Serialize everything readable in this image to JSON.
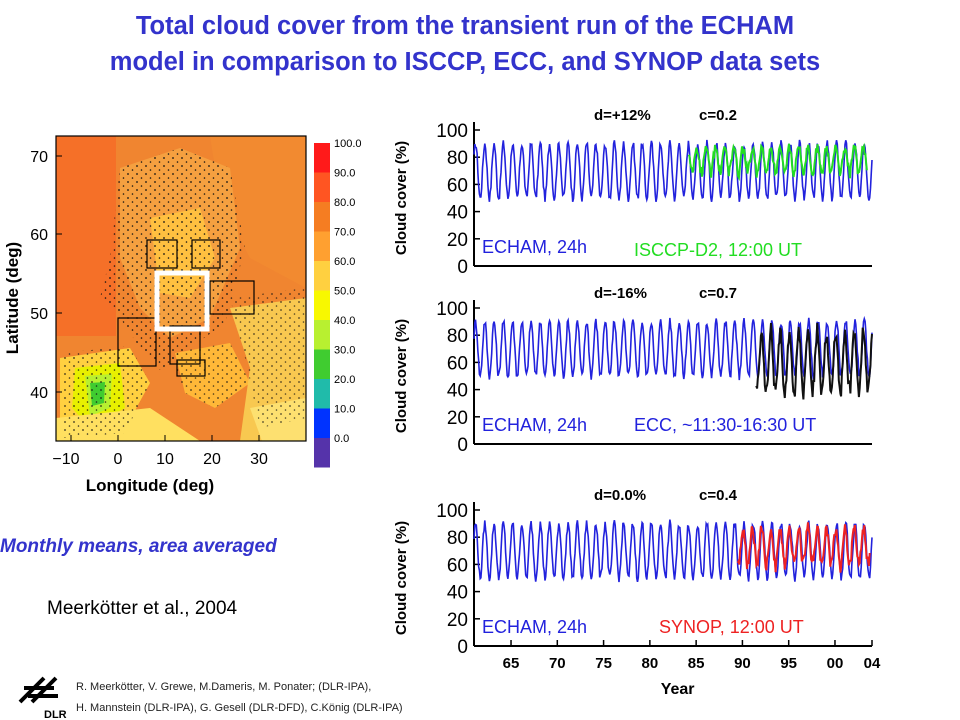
{
  "title": {
    "line1": "Total cloud cover from the transient run of the ECHAM",
    "line2": "model in comparison to ISCCP, ECC, and SYNOP data sets"
  },
  "map": {
    "colorbar": [
      "100.0",
      "90.0",
      "80.0",
      "70.0",
      "60.0",
      "50.0",
      "40.0",
      "30.0",
      "20.0",
      "10.0",
      "0.0"
    ],
    "colorbar_colors": [
      "#ff1a1a",
      "#ff5522",
      "#f57d22",
      "#ffa030",
      "#ffd040",
      "#f8f800",
      "#b8f030",
      "#40cc30",
      "#20bbaa",
      "#0033ff",
      "#5533aa"
    ],
    "lat_ticks": [
      "70",
      "60",
      "50",
      "40"
    ],
    "lon_ticks": [
      "−10",
      "0",
      "10",
      "20",
      "30"
    ],
    "ylabel": "Latitude (deg)",
    "xlabel": "Longitude (deg)"
  },
  "subtitle": "Monthly means, area averaged",
  "citation": "Meerkötter et al., 2004",
  "credits": {
    "line1": "R. Meerkötter, V. Grewe, M.Dameris, M. Ponater; (DLR-IPA),",
    "line2": "H. Mannstein (DLR-IPA), G. Gesell (DLR-DFD), C.König (DLR-IPA)"
  },
  "logo_text": "DLR",
  "panels": [
    {
      "d": "d=+12%",
      "c": "c=0.2",
      "model_label": "ECHAM, 24h",
      "obs_label": "ISCCP-D2, 12:00 UT",
      "obs_color": "#22dd22",
      "ylabel": "Cloud cover (%)"
    },
    {
      "d": "d=-16%",
      "c": "c=0.7",
      "model_label": "ECHAM, 24h",
      "obs_label": "ECC, ~11:30-16:30 UT",
      "obs_color": "#111111",
      "ylabel": "Cloud cover (%)"
    },
    {
      "d": "d=0.0%",
      "c": "c=0.4",
      "model_label": "ECHAM, 24h",
      "obs_label": "SYNOP, 12:00 UT",
      "obs_color": "#ee2222",
      "ylabel": "Cloud cover (%)"
    }
  ],
  "y_ticks": [
    "100",
    "80",
    "60",
    "40",
    "20",
    "0"
  ],
  "x_ticks": [
    "65",
    "70",
    "75",
    "80",
    "85",
    "90",
    "95",
    "00",
    "04"
  ],
  "x_label": "Year",
  "model_color": "#2222dd",
  "chart_data": [
    {
      "type": "line",
      "ylabel": "Cloud cover (%)",
      "ylim": [
        0,
        100
      ],
      "xlim": [
        1961,
        2004
      ],
      "series": [
        {
          "name": "ECHAM, 24h",
          "x_range": [
            1961,
            2004
          ],
          "min": 48,
          "max": 92
        },
        {
          "name": "ISCCP-D2, 12:00 UT",
          "x_range": [
            1984,
            2004
          ],
          "min": 66,
          "max": 90
        }
      ],
      "annotations": [
        "d=+12%",
        "c=0.2"
      ]
    },
    {
      "type": "line",
      "ylabel": "Cloud cover (%)",
      "ylim": [
        0,
        100
      ],
      "xlim": [
        1961,
        2004
      ],
      "series": [
        {
          "name": "ECHAM, 24h",
          "x_range": [
            1961,
            2004
          ],
          "min": 48,
          "max": 92
        },
        {
          "name": "ECC, ~11:30-16:30 UT",
          "x_range": [
            1991,
            2004
          ],
          "min": 30,
          "max": 88
        }
      ],
      "annotations": [
        "d=-16%",
        "c=0.7"
      ]
    },
    {
      "type": "line",
      "ylabel": "Cloud cover (%)",
      "x_label": "Year",
      "ylim": [
        0,
        100
      ],
      "xlim": [
        1961,
        2004
      ],
      "series": [
        {
          "name": "ECHAM, 24h",
          "x_range": [
            1961,
            2004
          ],
          "min": 48,
          "max": 92
        },
        {
          "name": "SYNOP, 12:00 UT",
          "x_range": [
            1989,
            2004
          ],
          "min": 56,
          "max": 90
        }
      ],
      "annotations": [
        "d=0.0%",
        "c=0.4"
      ]
    }
  ]
}
